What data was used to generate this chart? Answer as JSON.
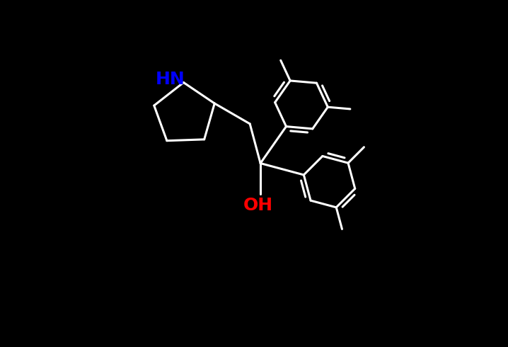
{
  "bg_color": "#000000",
  "bond_color": "#FFFFFF",
  "N_color": "#0000FF",
  "O_color": "#FF0000",
  "lw": 2.2,
  "font_size": 18,
  "HN_label": "HN",
  "OH_label": "OH",
  "xlim": [
    -5.0,
    6.0
  ],
  "ylim": [
    -4.5,
    4.0
  ]
}
